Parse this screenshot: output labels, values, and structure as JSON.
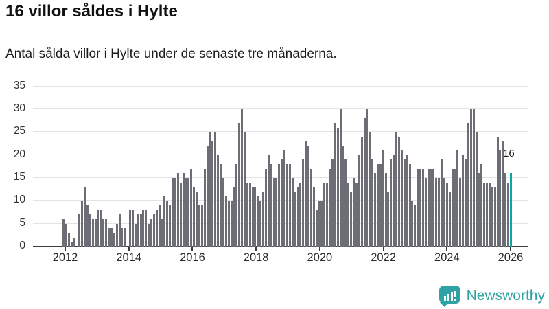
{
  "header": {
    "title": "16 villor såldes i Hylte",
    "subtitle": "Antal sålda villor i Hylte under de senaste tre månaderna."
  },
  "chart_data": {
    "type": "bar",
    "title": "16 villor såldes i Hylte",
    "subtitle": "Antal sålda villor i Hylte under de senaste tre månaderna.",
    "frequency": "monthly",
    "start": "2012-01",
    "end": "2026-01",
    "xlabel": "",
    "ylabel": "",
    "ylim": [
      0,
      35
    ],
    "grid": true,
    "y_ticks": [
      0,
      5,
      10,
      15,
      20,
      25,
      30,
      35
    ],
    "x_tick_labels": [
      "2012",
      "2014",
      "2016",
      "2018",
      "2020",
      "2022",
      "2024",
      "2026"
    ],
    "values": [
      6,
      5,
      3,
      1,
      2,
      0,
      7,
      10,
      13,
      9,
      7,
      6,
      6,
      8,
      8,
      6,
      6,
      4,
      4,
      3,
      5,
      7,
      4,
      4,
      0,
      8,
      8,
      5,
      7,
      7,
      8,
      8,
      5,
      6,
      7,
      8,
      9,
      6,
      11,
      10,
      9,
      15,
      15,
      16,
      14,
      16,
      15,
      15,
      17,
      13,
      12,
      9,
      9,
      17,
      22,
      25,
      23,
      25,
      20,
      18,
      15,
      11,
      10,
      10,
      13,
      18,
      27,
      30,
      25,
      14,
      14,
      13,
      13,
      11,
      10,
      12,
      17,
      20,
      18,
      15,
      15,
      18,
      19,
      21,
      18,
      18,
      15,
      12,
      13,
      14,
      19,
      23,
      22,
      17,
      13,
      8,
      10,
      10,
      14,
      14,
      17,
      19,
      27,
      26,
      30,
      22,
      19,
      14,
      12,
      15,
      14,
      20,
      24,
      28,
      30,
      25,
      19,
      16,
      18,
      18,
      21,
      16,
      12,
      19,
      20,
      25,
      24,
      21,
      19,
      20,
      18,
      10,
      9,
      17,
      17,
      17,
      15,
      17,
      17,
      17,
      15,
      15,
      19,
      15,
      14,
      12,
      17,
      17,
      21,
      15,
      20,
      19,
      27,
      30,
      30,
      25,
      16,
      18,
      14,
      14,
      14,
      13,
      13,
      24,
      21,
      23,
      16,
      14,
      16
    ],
    "bar_color": "#6d6d75",
    "highlight": {
      "index": 168,
      "value": 16,
      "label": "16",
      "color": "#0aa6a6"
    }
  },
  "footer": {
    "brand": "Newsworthy",
    "logo_icon": "bar-chart-speech-bubble-icon",
    "brand_color": "#2fa3a3"
  }
}
